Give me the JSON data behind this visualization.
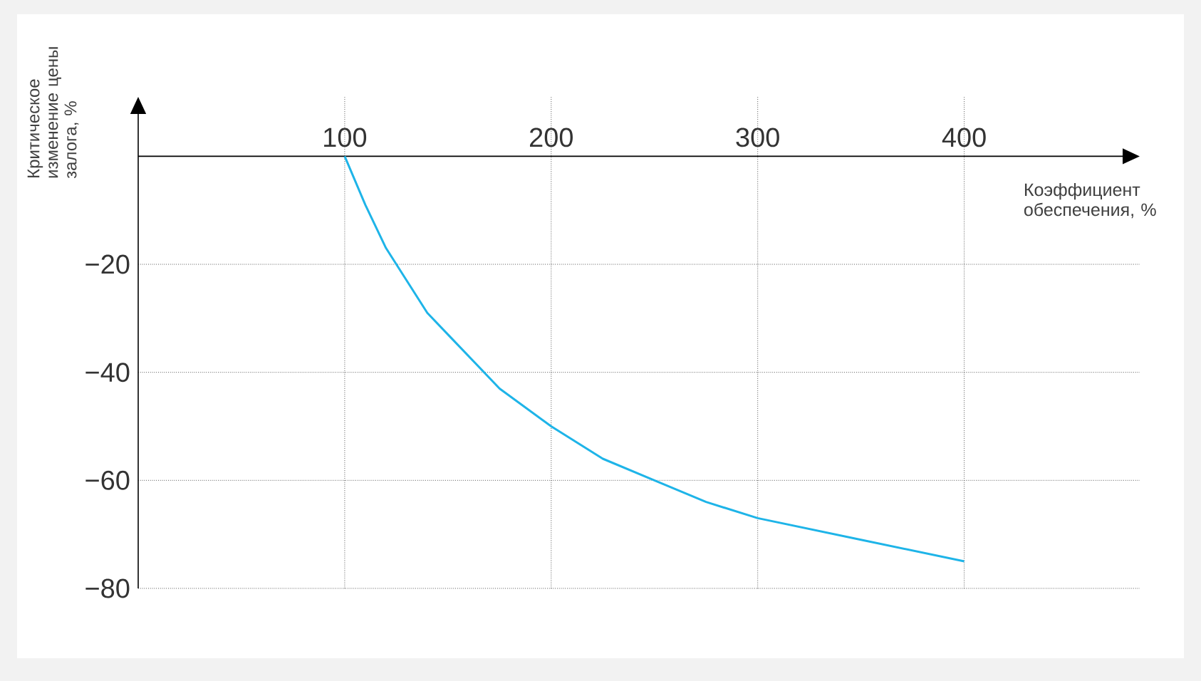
{
  "chart_data": {
    "type": "line",
    "xlabel": "Коэффициент обеспечения, %",
    "ylabel": "Критическое изменение цены залога, %",
    "x": [
      100,
      110,
      120,
      130,
      140,
      150,
      175,
      200,
      225,
      250,
      275,
      300,
      350,
      400
    ],
    "values": [
      0,
      -9,
      -17,
      -23,
      -29,
      -33,
      -43,
      -50,
      -56,
      -60,
      -64,
      -67,
      -71,
      -75
    ],
    "color": "#1eb4e8",
    "xlim": [
      0,
      485
    ],
    "ylim": [
      -80,
      11
    ],
    "xticks": [
      100,
      200,
      300,
      400
    ],
    "yticks": [
      {
        "value": -80,
        "label": "−80"
      },
      {
        "value": -60,
        "label": "−60"
      },
      {
        "value": -40,
        "label": "−40"
      },
      {
        "value": -20,
        "label": "−20"
      }
    ],
    "grid": true
  }
}
